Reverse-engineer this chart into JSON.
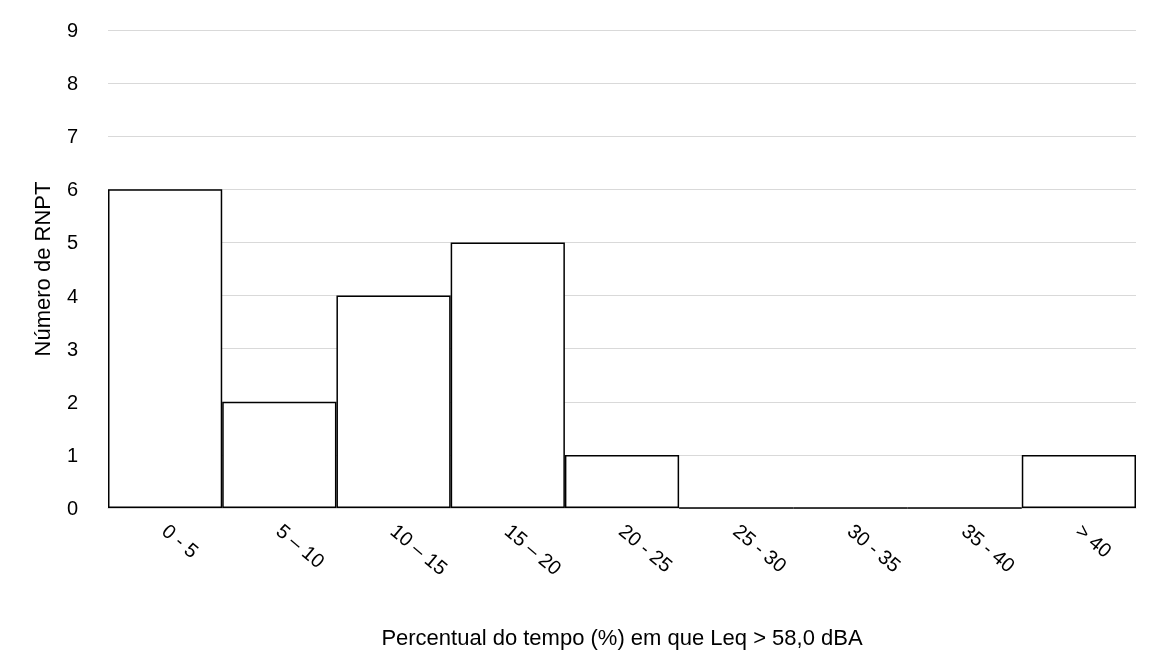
{
  "chart_data": {
    "type": "bar",
    "xlabel": "Percentual do tempo (%) em que Leq > 58,0 dBA",
    "ylabel": "Número de RNPT",
    "categories": [
      "0 - 5",
      "5 – 10",
      "10 – 15",
      "15 – 20",
      "20 - 25",
      "25 - 30",
      "30 - 35",
      "35 - 40",
      "> 40"
    ],
    "values": [
      6,
      2,
      4,
      5,
      1,
      0,
      0,
      0,
      1
    ],
    "color": "#ffffff",
    "ylim": [
      0,
      9
    ],
    "yticks": [
      0,
      1,
      2,
      3,
      4,
      5,
      6,
      7,
      8,
      9
    ],
    "grid": "y"
  }
}
